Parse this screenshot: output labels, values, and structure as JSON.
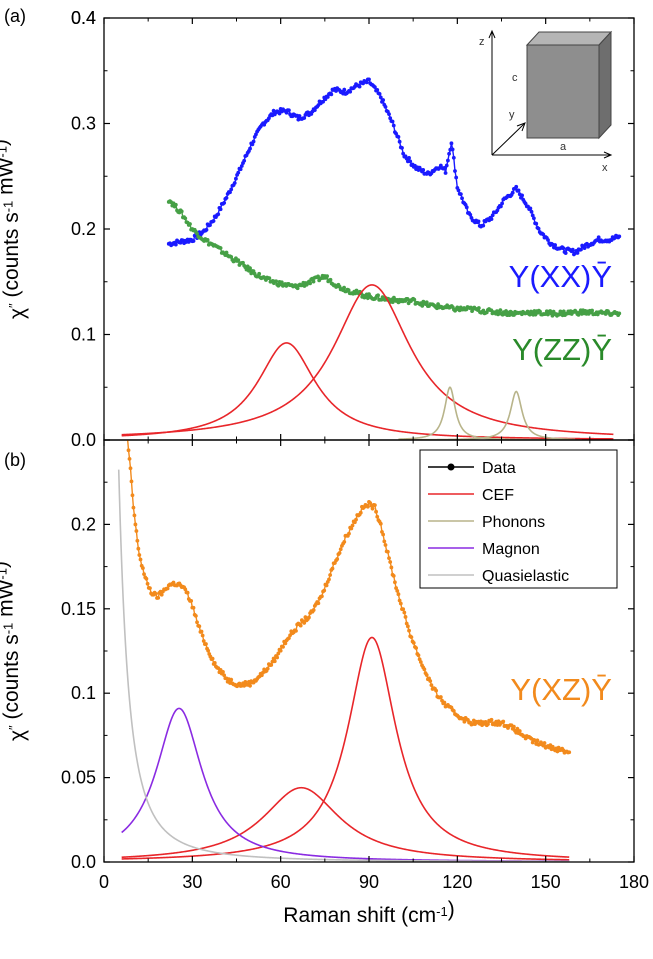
{
  "chart_data": [
    {
      "panel_label": "(a)",
      "type": "line",
      "xlim": [
        0,
        180
      ],
      "ylim": [
        0,
        0.4
      ],
      "yticks": [
        "0.0",
        "0.1",
        "0.2",
        "0.3",
        "0.4"
      ],
      "ylabel_parts": [
        "χ",
        "″",
        " (counts s",
        "-1",
        " mW",
        "-1",
        ")"
      ],
      "series": [
        {
          "name": "Y(XX)Ȳ",
          "kind": "data",
          "color": "#1a1aff",
          "x": [
            22,
            26,
            30,
            34,
            38,
            42,
            46,
            50,
            54,
            58,
            62,
            66,
            70,
            74,
            78,
            82,
            86,
            90,
            94,
            98,
            102,
            106,
            110,
            114,
            116,
            118,
            120,
            124,
            128,
            132,
            136,
            140,
            144,
            148,
            152,
            156,
            160,
            164,
            168,
            172,
            175
          ],
          "y": [
            0.186,
            0.188,
            0.19,
            0.198,
            0.212,
            0.232,
            0.255,
            0.28,
            0.3,
            0.311,
            0.312,
            0.305,
            0.31,
            0.322,
            0.332,
            0.33,
            0.336,
            0.34,
            0.325,
            0.3,
            0.27,
            0.258,
            0.252,
            0.26,
            0.255,
            0.283,
            0.24,
            0.213,
            0.203,
            0.212,
            0.228,
            0.238,
            0.222,
            0.198,
            0.186,
            0.18,
            0.178,
            0.185,
            0.19,
            0.19,
            0.193
          ]
        },
        {
          "name": "Y(ZZ)Ȳ",
          "kind": "data",
          "color": "#46a046",
          "x": [
            22,
            24,
            26,
            28,
            30,
            34,
            38,
            42,
            46,
            50,
            55,
            60,
            65,
            70,
            75,
            80,
            85,
            90,
            95,
            100,
            105,
            110,
            115,
            120,
            125,
            130,
            135,
            140,
            145,
            150,
            155,
            160,
            165,
            170,
            175
          ],
          "y": [
            0.228,
            0.222,
            0.216,
            0.208,
            0.2,
            0.19,
            0.183,
            0.175,
            0.168,
            0.16,
            0.152,
            0.148,
            0.145,
            0.15,
            0.155,
            0.145,
            0.14,
            0.136,
            0.134,
            0.132,
            0.132,
            0.128,
            0.126,
            0.124,
            0.124,
            0.122,
            0.121,
            0.12,
            0.121,
            0.12,
            0.12,
            0.121,
            0.121,
            0.12,
            0.12
          ]
        },
        {
          "name": "CEF",
          "kind": "lorentzian",
          "color": "#e8262a",
          "center": 62,
          "height": 0.092,
          "hwhm": 12,
          "xrange": [
            6,
            173
          ]
        },
        {
          "name": "CEF",
          "kind": "lorentzian",
          "color": "#e8262a",
          "center": 91,
          "height": 0.147,
          "hwhm": 16,
          "xrange": [
            6,
            173
          ]
        },
        {
          "name": "Phonons",
          "kind": "lorentzian",
          "color": "#b8b48a",
          "center": 117.5,
          "height": 0.05,
          "hwhm": 2.2,
          "xrange": [
            100,
            160
          ]
        },
        {
          "name": "Phonons",
          "kind": "lorentzian",
          "color": "#b8b48a",
          "center": 140,
          "height": 0.046,
          "hwhm": 2.4,
          "xrange": [
            100,
            160
          ]
        }
      ],
      "annotations": [
        "Y(XX)Ȳ",
        "Y(ZZ)Ȳ"
      ],
      "inset": {
        "axis_labels": [
          "z",
          "c",
          "y",
          "a",
          "x"
        ]
      }
    },
    {
      "panel_label": "(b)",
      "type": "line",
      "xlim": [
        0,
        180
      ],
      "ylim": [
        0,
        0.25
      ],
      "xticks": [
        "0",
        "30",
        "60",
        "90",
        "120",
        "150",
        "180"
      ],
      "yticks": [
        "0.0",
        "0.05",
        "0.1",
        "0.15",
        "0.2"
      ],
      "xlabel_parts": [
        "Raman shift (cm",
        "-1",
        ")"
      ],
      "ylabel_parts": [
        "χ",
        "″",
        " (counts s",
        "-1",
        " mW",
        "-1",
        ")"
      ],
      "series": [
        {
          "name": "Y(XZ)Ȳ",
          "kind": "data",
          "color": "#f28a1c",
          "x": [
            8,
            9,
            10,
            11,
            12,
            14,
            16,
            18,
            20,
            22,
            24,
            26,
            28,
            30,
            32,
            35,
            38,
            42,
            46,
            50,
            54,
            58,
            62,
            66,
            70,
            74,
            78,
            82,
            86,
            88,
            90,
            92,
            94,
            96,
            100,
            104,
            108,
            112,
            116,
            120,
            124,
            128,
            132,
            136,
            140,
            144,
            148,
            152,
            156,
            158
          ],
          "y": [
            0.25,
            0.232,
            0.21,
            0.195,
            0.182,
            0.168,
            0.16,
            0.157,
            0.16,
            0.164,
            0.165,
            0.164,
            0.16,
            0.152,
            0.14,
            0.127,
            0.116,
            0.108,
            0.105,
            0.106,
            0.112,
            0.12,
            0.132,
            0.14,
            0.146,
            0.158,
            0.176,
            0.192,
            0.205,
            0.21,
            0.212,
            0.21,
            0.2,
            0.185,
            0.158,
            0.135,
            0.117,
            0.102,
            0.093,
            0.087,
            0.083,
            0.082,
            0.083,
            0.082,
            0.078,
            0.073,
            0.07,
            0.068,
            0.066,
            0.065
          ]
        },
        {
          "name": "CEF",
          "kind": "lorentzian",
          "color": "#e8262a",
          "center": 67,
          "height": 0.044,
          "hwhm": 16,
          "xrange": [
            6,
            158
          ]
        },
        {
          "name": "CEF",
          "kind": "lorentzian",
          "color": "#e8262a",
          "center": 91,
          "height": 0.133,
          "hwhm": 10,
          "xrange": [
            6,
            158
          ]
        },
        {
          "name": "Magnon",
          "kind": "lorentzian",
          "color": "#8a2be2",
          "center": 25.5,
          "height": 0.091,
          "hwhm": 9.5,
          "xrange": [
            6,
            158
          ]
        },
        {
          "name": "Quasielastic",
          "kind": "lorentzian",
          "color": "#c0c0c0",
          "center": 0,
          "height": 0.8,
          "hwhm": 3.2,
          "xrange": [
            5,
            158
          ]
        }
      ],
      "annotations": [
        "Y(XZ)Ȳ"
      ],
      "legend": {
        "placement": "top-right",
        "entries": [
          {
            "label": "Data",
            "color": "#000000",
            "marker": true
          },
          {
            "label": "CEF",
            "color": "#e8262a"
          },
          {
            "label": "Phonons",
            "color": "#b8b48a"
          },
          {
            "label": "Magnon",
            "color": "#8a2be2"
          },
          {
            "label": "Quasielastic",
            "color": "#c0c0c0"
          }
        ]
      }
    }
  ]
}
